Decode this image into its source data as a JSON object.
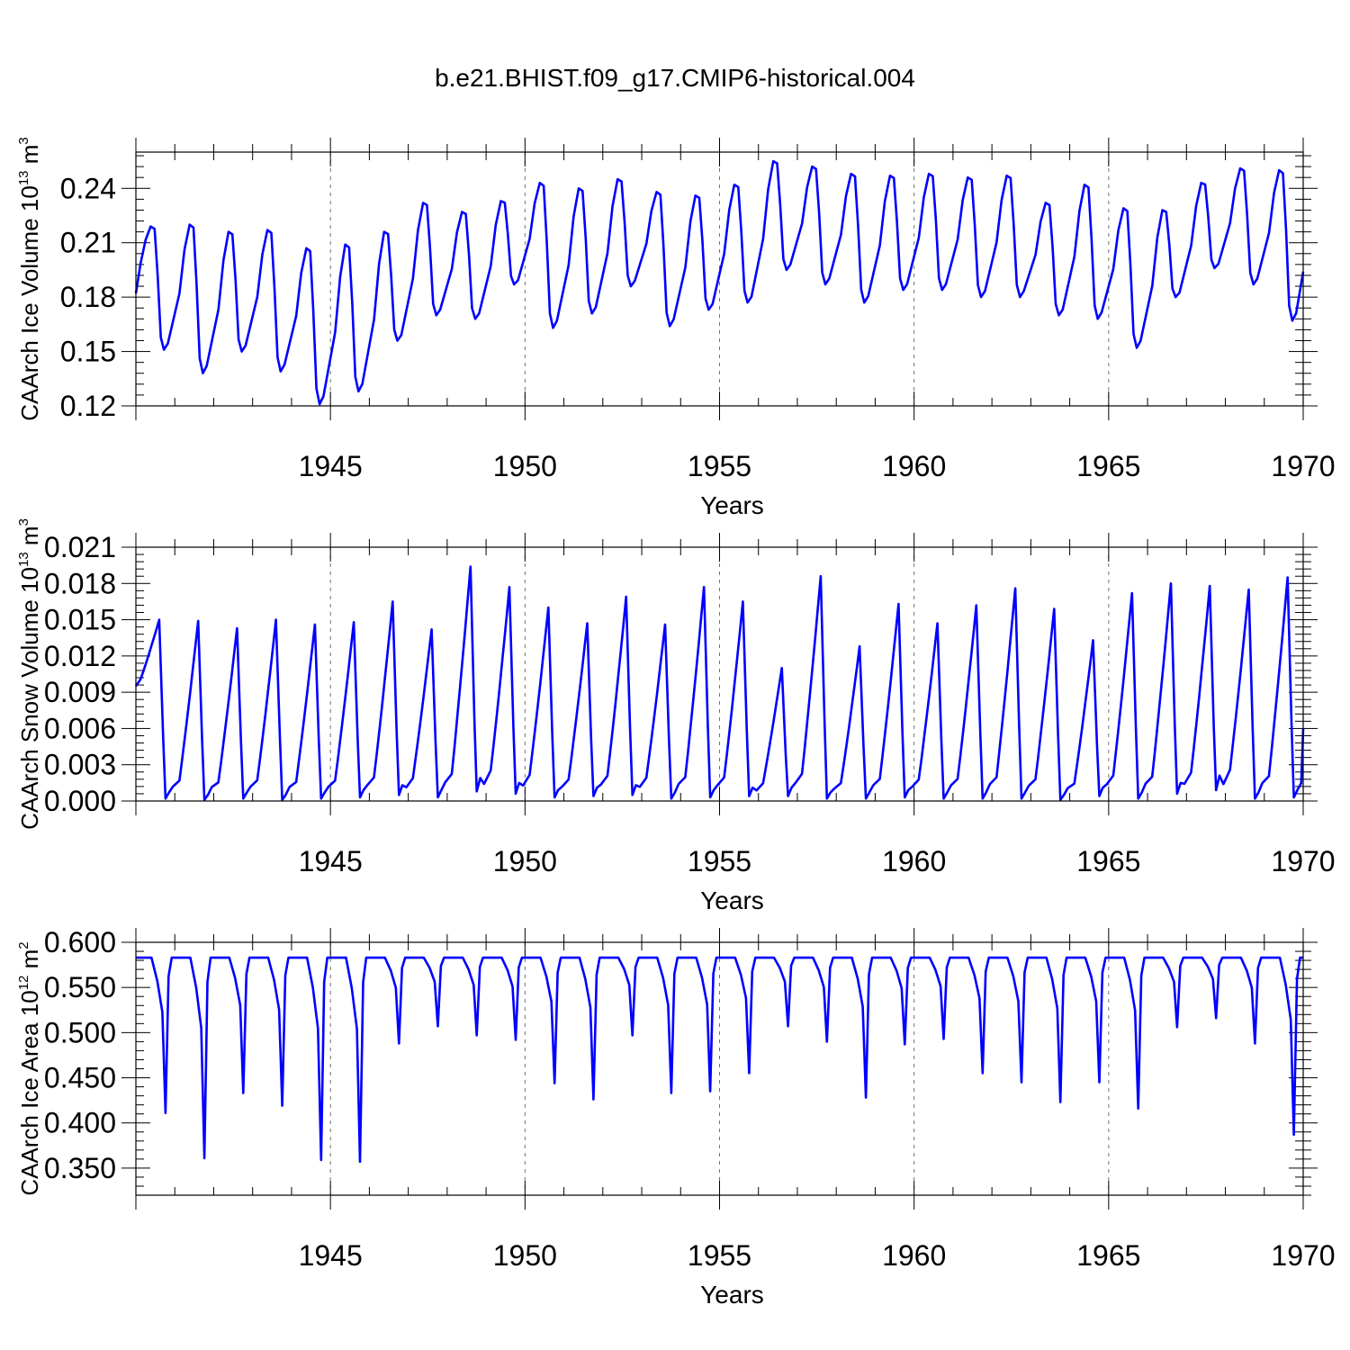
{
  "title": "b.e21.BHIST.f09_g17.CMIP6-historical.004",
  "colors": {
    "series": "#0000ff",
    "axes": "#000000"
  },
  "chart_data": [
    {
      "type": "line",
      "title": "b.e21.BHIST.f09_g17.CMIP6-historical.004",
      "xlabel": "Years",
      "ylabel_main": "CAArch Ice Volume 10",
      "ylabel_exp": "13",
      "ylabel_unit": "m",
      "ylabel_unit_exp": "3",
      "xlim": [
        1940.0,
        1970.0
      ],
      "ylim": [
        0.12,
        0.26
      ],
      "xticks": [
        "1945",
        "1950",
        "1955",
        "1960",
        "1965",
        "1970"
      ],
      "yticks": [
        "0.12",
        "0.15",
        "0.18",
        "0.21",
        "0.24"
      ],
      "series": [
        {
          "name": "CAArch Ice Volume",
          "annual_max": [
            0.219,
            0.22,
            0.216,
            0.217,
            0.207,
            0.209,
            0.216,
            0.232,
            0.227,
            0.233,
            0.243,
            0.24,
            0.245,
            0.238,
            0.236,
            0.242,
            0.255,
            0.252,
            0.248,
            0.247,
            0.248,
            0.246,
            0.247,
            0.232,
            0.242,
            0.229,
            0.228,
            0.243,
            0.251,
            0.25
          ],
          "annual_min": [
            0.151,
            0.138,
            0.15,
            0.139,
            0.121,
            0.128,
            0.156,
            0.17,
            0.168,
            0.187,
            0.163,
            0.171,
            0.186,
            0.164,
            0.173,
            0.177,
            0.195,
            0.187,
            0.177,
            0.184,
            0.184,
            0.18,
            0.18,
            0.17,
            0.168,
            0.152,
            0.18,
            0.196,
            0.187,
            0.167
          ],
          "start_value": 0.182,
          "end_value": 0.194
        }
      ]
    },
    {
      "type": "line",
      "xlabel": "Years",
      "ylabel_main": "CAArch Snow Volume 10",
      "ylabel_exp": "13",
      "ylabel_unit": "m",
      "ylabel_unit_exp": "3",
      "xlim": [
        1940.0,
        1970.0
      ],
      "ylim": [
        0.0,
        0.021
      ],
      "xticks": [
        "1945",
        "1950",
        "1955",
        "1960",
        "1965",
        "1970"
      ],
      "yticks": [
        "0.000",
        "0.003",
        "0.006",
        "0.009",
        "0.012",
        "0.015",
        "0.018",
        "0.021"
      ],
      "series": [
        {
          "name": "CAArch Snow Volume",
          "annual_max": [
            0.015,
            0.0149,
            0.0143,
            0.015,
            0.0146,
            0.0148,
            0.0165,
            0.0142,
            0.0194,
            0.0177,
            0.016,
            0.0147,
            0.0169,
            0.0146,
            0.0177,
            0.0165,
            0.011,
            0.0186,
            0.0128,
            0.0163,
            0.0147,
            0.0162,
            0.0176,
            0.0159,
            0.0133,
            0.0172,
            0.018,
            0.0178,
            0.0175,
            0.0185
          ],
          "annual_min": [
            0.0002,
            0.0001,
            0.0002,
            0.0001,
            0.0002,
            0.0003,
            0.0005,
            0.0003,
            0.0008,
            0.0006,
            0.0003,
            0.0004,
            0.0005,
            0.0002,
            0.0003,
            0.0004,
            0.0004,
            0.0002,
            0.0002,
            0.0003,
            0.0002,
            0.0002,
            0.0002,
            0.0001,
            0.0004,
            0.0002,
            0.0006,
            0.0009,
            0.0002,
            0.0003
          ],
          "start_value": 0.0095,
          "end_value": 0.006
        }
      ]
    },
    {
      "type": "line",
      "xlabel": "Years",
      "ylabel_main": "CAArch Ice Area 10",
      "ylabel_exp": "12",
      "ylabel_unit": "m",
      "ylabel_unit_exp": "2",
      "xlim": [
        1940.0,
        1970.0
      ],
      "ylim": [
        0.32,
        0.6
      ],
      "xticks": [
        "1945",
        "1950",
        "1955",
        "1960",
        "1965",
        "1970"
      ],
      "yticks": [
        "0.350",
        "0.400",
        "0.450",
        "0.500",
        "0.550",
        "0.600"
      ],
      "series": [
        {
          "name": "CAArch Ice Area",
          "annual_max": [
            0.583,
            0.583,
            0.583,
            0.583,
            0.583,
            0.583,
            0.583,
            0.583,
            0.583,
            0.583,
            0.583,
            0.583,
            0.583,
            0.583,
            0.583,
            0.583,
            0.583,
            0.583,
            0.583,
            0.583,
            0.583,
            0.583,
            0.583,
            0.583,
            0.583,
            0.583,
            0.583,
            0.583,
            0.583,
            0.583
          ],
          "annual_min": [
            0.411,
            0.361,
            0.433,
            0.419,
            0.359,
            0.357,
            0.488,
            0.507,
            0.497,
            0.492,
            0.444,
            0.426,
            0.497,
            0.433,
            0.435,
            0.455,
            0.507,
            0.49,
            0.428,
            0.487,
            0.493,
            0.455,
            0.445,
            0.423,
            0.445,
            0.416,
            0.506,
            0.516,
            0.488,
            0.387
          ],
          "start_value": 0.583,
          "end_value": 0.583
        }
      ]
    }
  ]
}
